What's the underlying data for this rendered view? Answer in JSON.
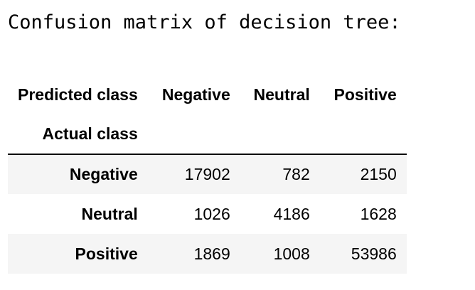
{
  "output_text": "Confusion matrix of decision tree:",
  "matrix": {
    "columns_name": "Predicted class",
    "index_name": "Actual class",
    "columns": [
      "Negative",
      "Neutral",
      "Positive"
    ],
    "rows": [
      {
        "label": "Negative",
        "values": [
          "17902",
          "782",
          "2150"
        ]
      },
      {
        "label": "Neutral",
        "values": [
          "1026",
          "4186",
          "1628"
        ]
      },
      {
        "label": "Positive",
        "values": [
          "1869",
          "1008",
          "53986"
        ]
      }
    ]
  }
}
